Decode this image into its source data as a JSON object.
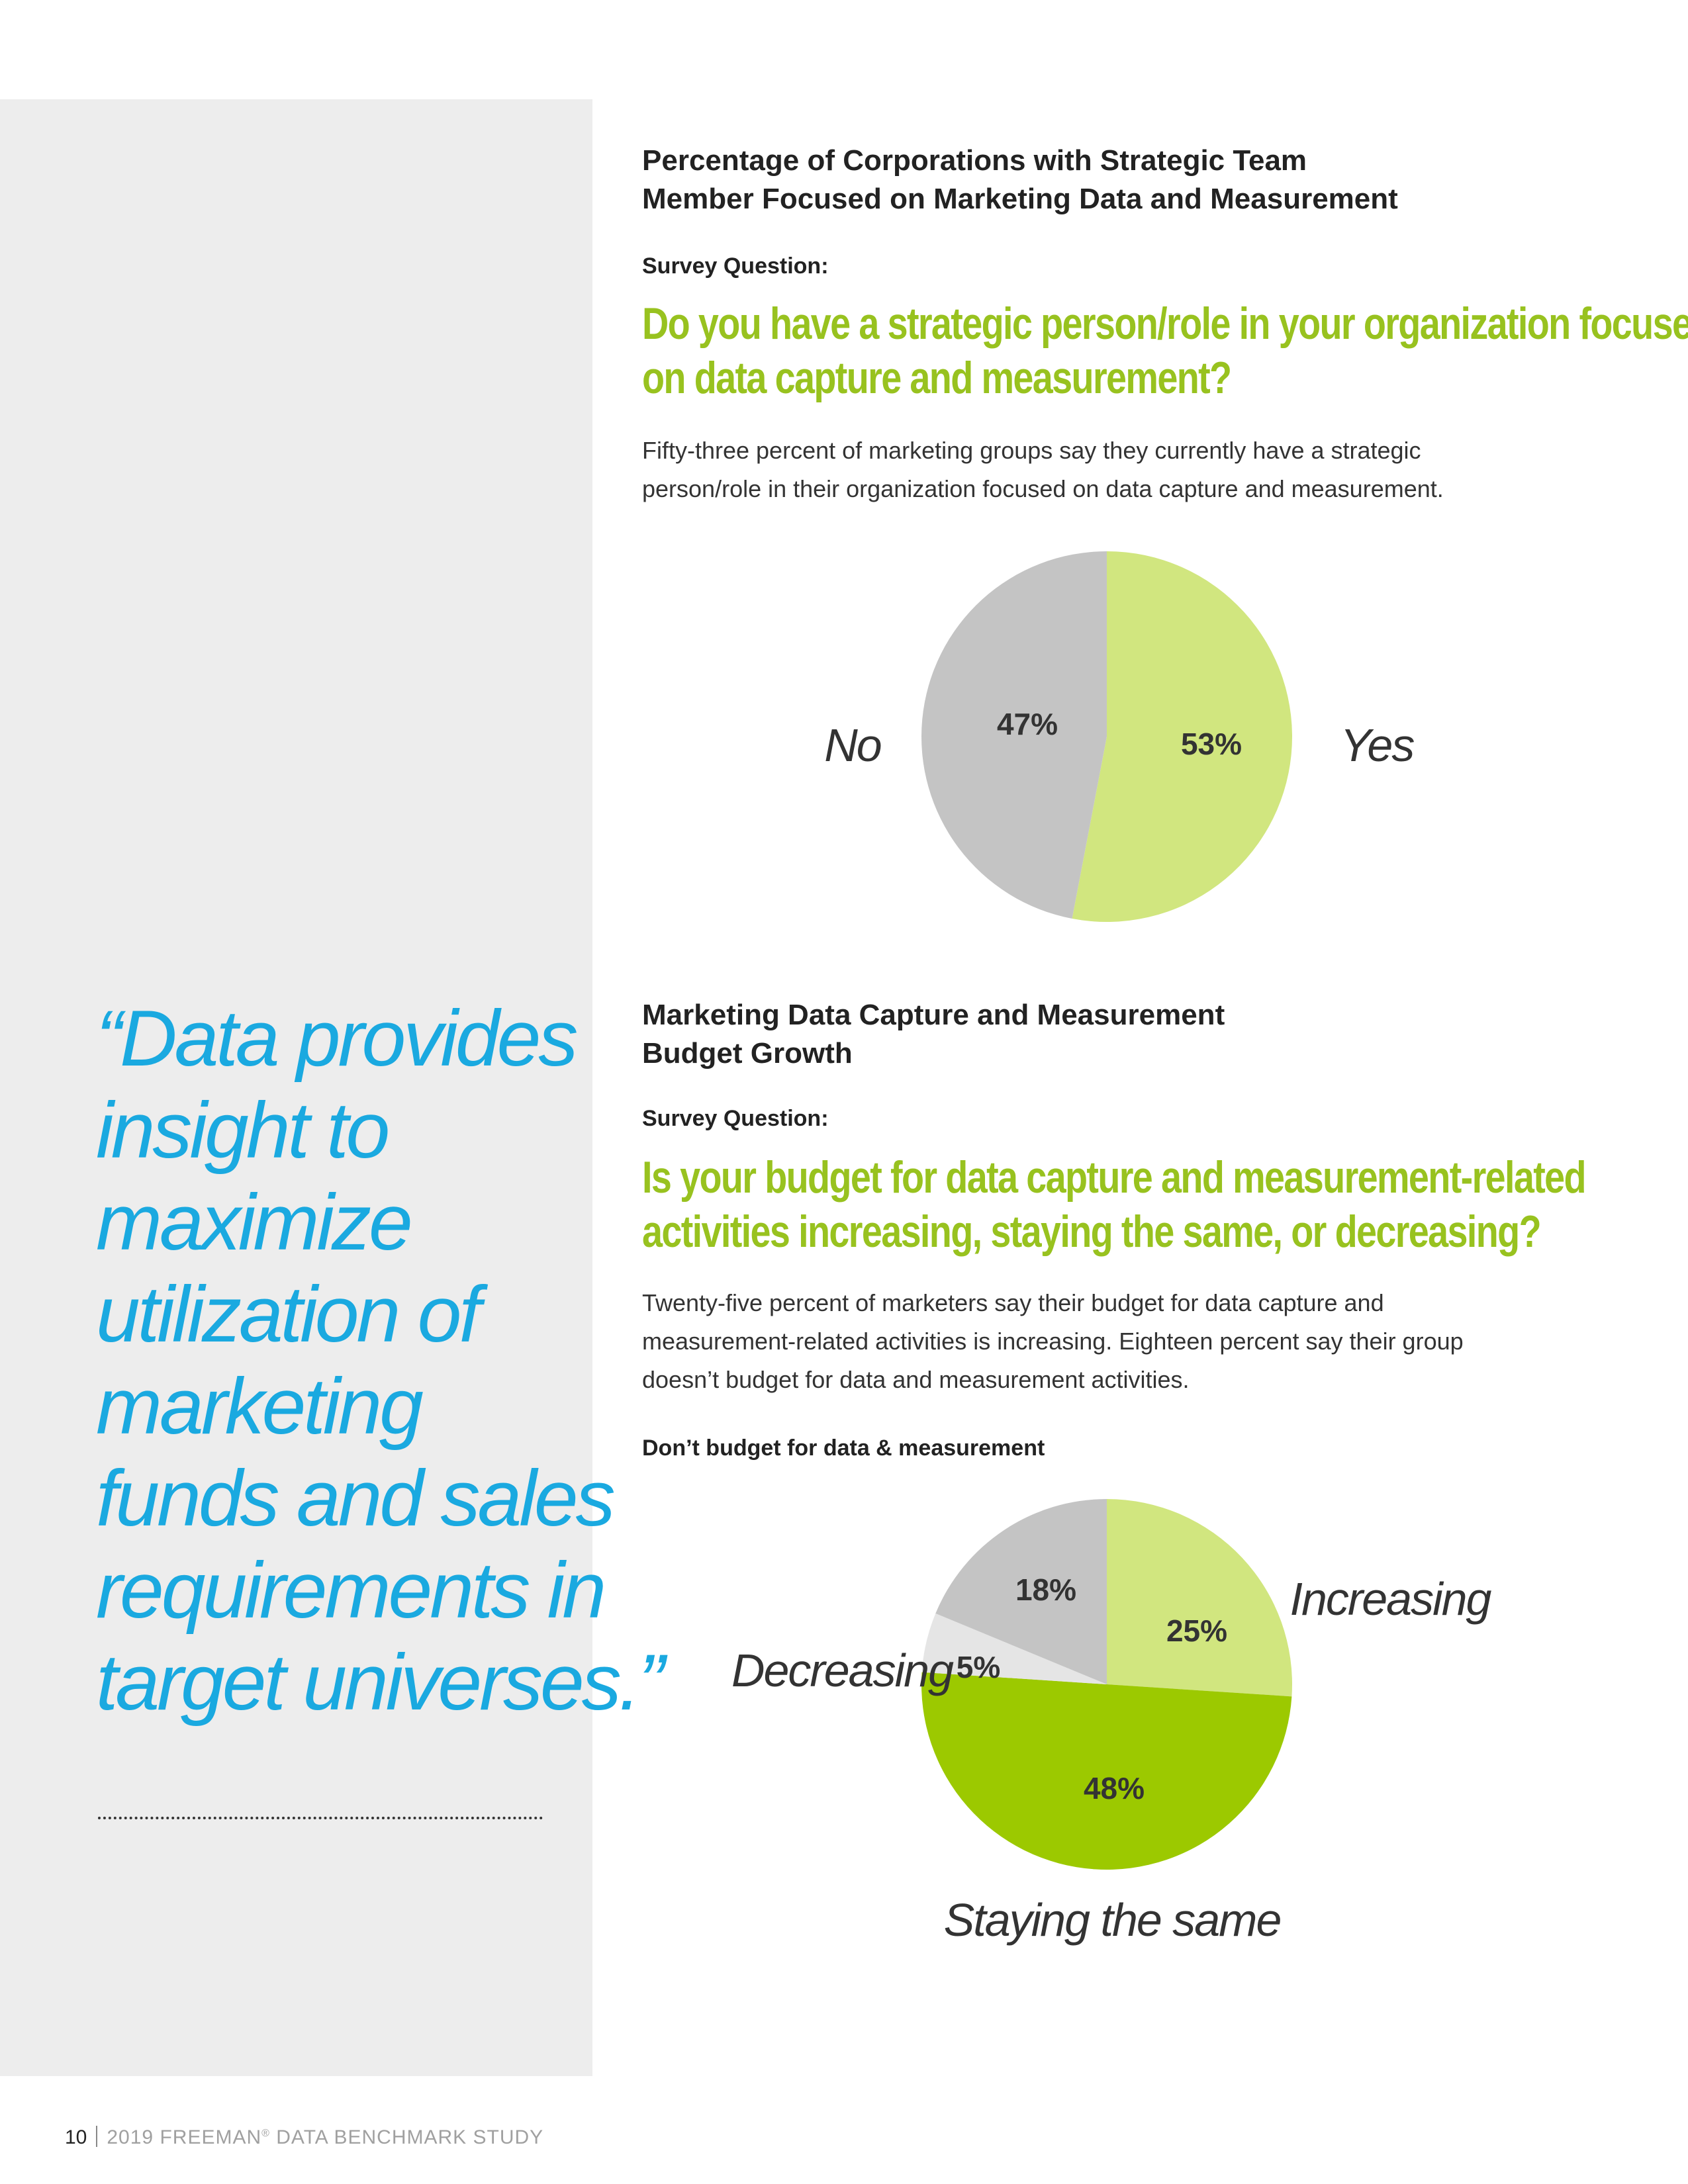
{
  "quote": {
    "lines": [
      "“Data provides",
      "insight to",
      "maximize",
      "utilization of",
      "marketing",
      "funds and sales",
      "requirements in",
      "target universes.”"
    ]
  },
  "section1": {
    "heading_lines": [
      "Percentage of Corporations with Strategic Team",
      "Member Focused on Marketing Data and Measurement"
    ],
    "survey_label": "Survey Question:",
    "question_lines": [
      "Do you have a strategic person/role in your organization focused",
      "on data capture and measurement?"
    ],
    "body_lines": [
      "Fifty-three percent of marketing groups say they currently have a strategic",
      "person/role in their organization focused on data capture and measurement."
    ]
  },
  "section2": {
    "heading_lines": [
      "Marketing Data Capture and Measurement",
      "Budget Growth"
    ],
    "survey_label": "Survey Question:",
    "question_lines": [
      "Is your budget for data capture and measurement-related",
      "activities increasing, staying the same, or decreasing?"
    ],
    "body_lines": [
      "Twenty-five percent of marketers say their budget for data capture and",
      "measurement-related activities is increasing. Eighteen percent say their group",
      "doesn’t budget for data and measurement activities."
    ],
    "chart_label": "Don’t budget for data & measurement"
  },
  "chart_data": [
    {
      "type": "pie",
      "categories": [
        "Yes",
        "No"
      ],
      "values": [
        53,
        47
      ],
      "value_labels": [
        "53%",
        "47%"
      ],
      "colors": [
        "#d1e67f",
        "#c4c4c4"
      ]
    },
    {
      "type": "pie",
      "categories": [
        "Increasing",
        "Staying the same",
        "Decreasing",
        "Don’t budget for data & measurement"
      ],
      "category_labels": [
        "Increasing",
        "Staying the same",
        "Decreasing",
        ""
      ],
      "values": [
        25,
        48,
        5,
        18
      ],
      "value_labels": [
        "25%",
        "48%",
        "5%",
        "18%"
      ],
      "colors": [
        "#d1e67f",
        "#9cc900",
        "#e5e5e5",
        "#c4c4c4"
      ]
    }
  ],
  "footer": {
    "page_number": "10",
    "title": "2019 FREEMAN",
    "registered": "®",
    "title_rest": " DATA BENCHMARK STUDY"
  }
}
